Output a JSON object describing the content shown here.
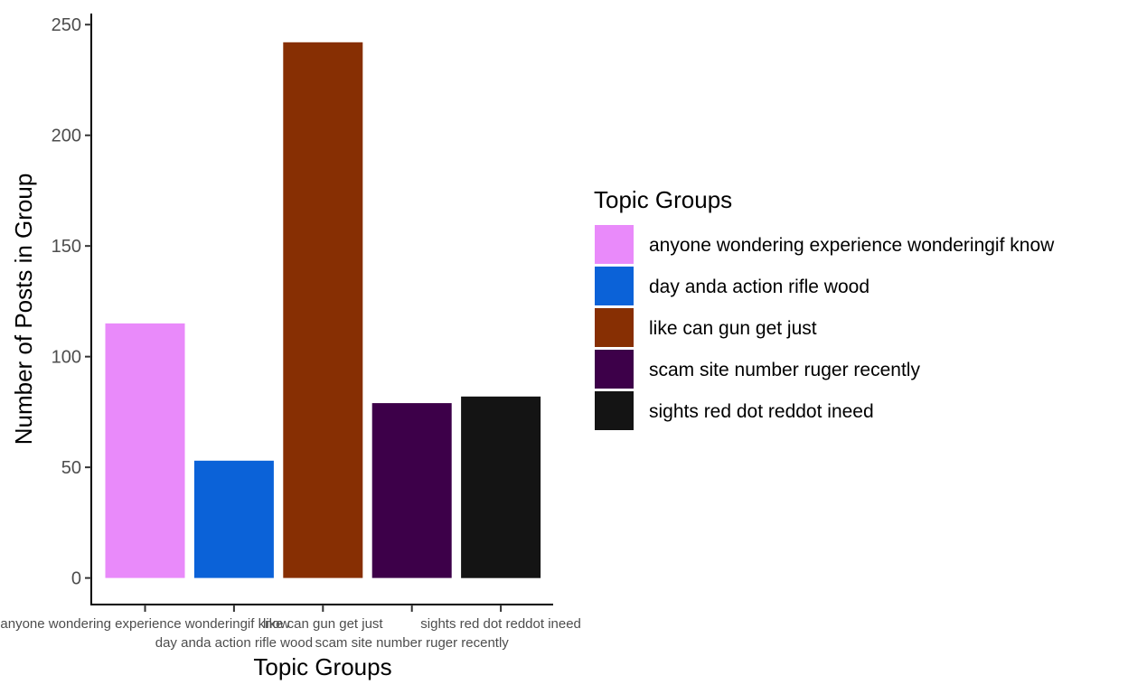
{
  "chart_data": {
    "type": "bar",
    "title": "",
    "xlabel": "Topic Groups",
    "ylabel": "Number of Posts in Group",
    "ylim": [
      -12,
      255
    ],
    "yticks": [
      0,
      50,
      100,
      150,
      200,
      250
    ],
    "ytick_labels": [
      "0",
      "50",
      "100",
      "150",
      "200",
      "250"
    ],
    "categories": [
      "anyone wondering experience wonderingif know",
      "day anda action rifle wood",
      "like can gun get just",
      "scam site number ruger recently",
      "sights red dot reddot ineed"
    ],
    "values": [
      115,
      53,
      242,
      79,
      82
    ],
    "colors": [
      "#E98AFA",
      "#0B62D8",
      "#872F03",
      "#3D0049",
      "#141414"
    ],
    "grid": false,
    "legend": {
      "title": "Topic Groups",
      "placement": "right",
      "entries": [
        "anyone wondering experience wonderingif know",
        "day anda action rifle wood",
        "like can gun get just",
        "scam site number ruger recently",
        "sights red dot reddot ineed"
      ]
    }
  }
}
